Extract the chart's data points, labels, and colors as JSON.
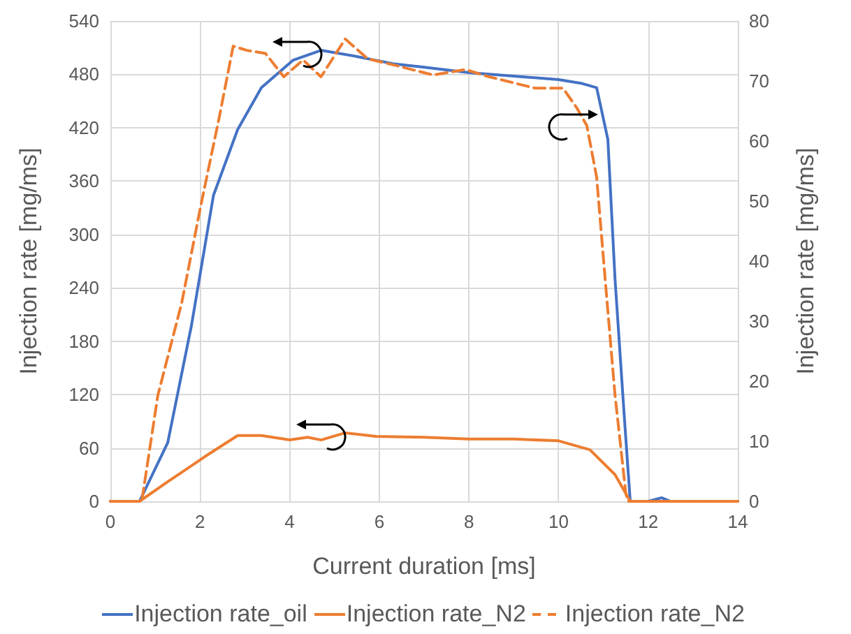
{
  "chart_data": {
    "type": "line",
    "xlabel": "Current duration [ms]",
    "ylabel": "Injection rate [mg/ms]",
    "y2label": "Injection rate [mg/ms]",
    "xlim": [
      0,
      14
    ],
    "xticks": [
      0,
      2,
      4,
      6,
      8,
      10,
      12,
      14
    ],
    "ylim": [
      0,
      540
    ],
    "yticks": [
      0,
      60,
      120,
      180,
      240,
      300,
      360,
      420,
      480,
      540
    ],
    "y2lim": [
      0,
      80
    ],
    "y2ticks": [
      0,
      10,
      20,
      30,
      40,
      50,
      60,
      70,
      80
    ],
    "grid": true,
    "legend": "bottom",
    "marker": "none",
    "series": [
      {
        "name": "Injection rate_oil",
        "color": "#4472c4",
        "line_style": "solid",
        "x": [
          0,
          0.65,
          1.28,
          1.81,
          2.3,
          2.84,
          3.37,
          4.08,
          4.7,
          5.5,
          6.3,
          7.0,
          8.0,
          9.0,
          10.0,
          10.5,
          10.85,
          11.1,
          11.26,
          11.47,
          11.6,
          12.0,
          12.3,
          12.5,
          13.0,
          14.0
        ],
        "values": [
          0,
          0,
          66,
          198,
          344,
          418,
          465,
          496,
          507,
          500,
          492,
          488,
          482,
          478,
          474,
          470,
          465,
          407,
          250,
          93,
          0,
          0,
          4,
          0,
          0,
          0
        ]
      },
      {
        "name": "Injection rate_N2",
        "color": "#ed7d31",
        "line_style": "solid",
        "x": [
          0,
          0.65,
          1.28,
          2.1,
          2.84,
          3.37,
          4.0,
          4.4,
          4.7,
          5.24,
          5.93,
          7.0,
          8.0,
          9.0,
          10.0,
          10.7,
          11.26,
          11.6,
          12.0,
          14.0
        ],
        "values": [
          0,
          0,
          22,
          50,
          74,
          74,
          69,
          72,
          69,
          77,
          73,
          72,
          70,
          70,
          68,
          58,
          30,
          0,
          0,
          0
        ]
      },
      {
        "name": "Injection rate_N2",
        "color": "#ed7d31",
        "line_style": "dashed",
        "axis": "y2",
        "x": [
          0,
          0.7,
          1.06,
          1.59,
          2.0,
          2.43,
          2.74,
          3.05,
          3.46,
          3.87,
          4.3,
          4.7,
          5.24,
          5.74,
          6.36,
          7.2,
          7.92,
          8.45,
          9.48,
          10.1,
          10.4,
          10.63,
          10.85,
          11.04,
          11.26,
          11.5,
          11.55,
          12.0,
          14.0
        ],
        "values": [
          0,
          0,
          17.7,
          33,
          48.6,
          64,
          75.8,
          75.1,
          74.6,
          70.7,
          73.5,
          70.7,
          77,
          73.7,
          72.6,
          71,
          71.9,
          70.7,
          68.8,
          68.8,
          65.6,
          62.6,
          54,
          37,
          17.7,
          1.4,
          0,
          0,
          0
        ]
      }
    ]
  }
}
